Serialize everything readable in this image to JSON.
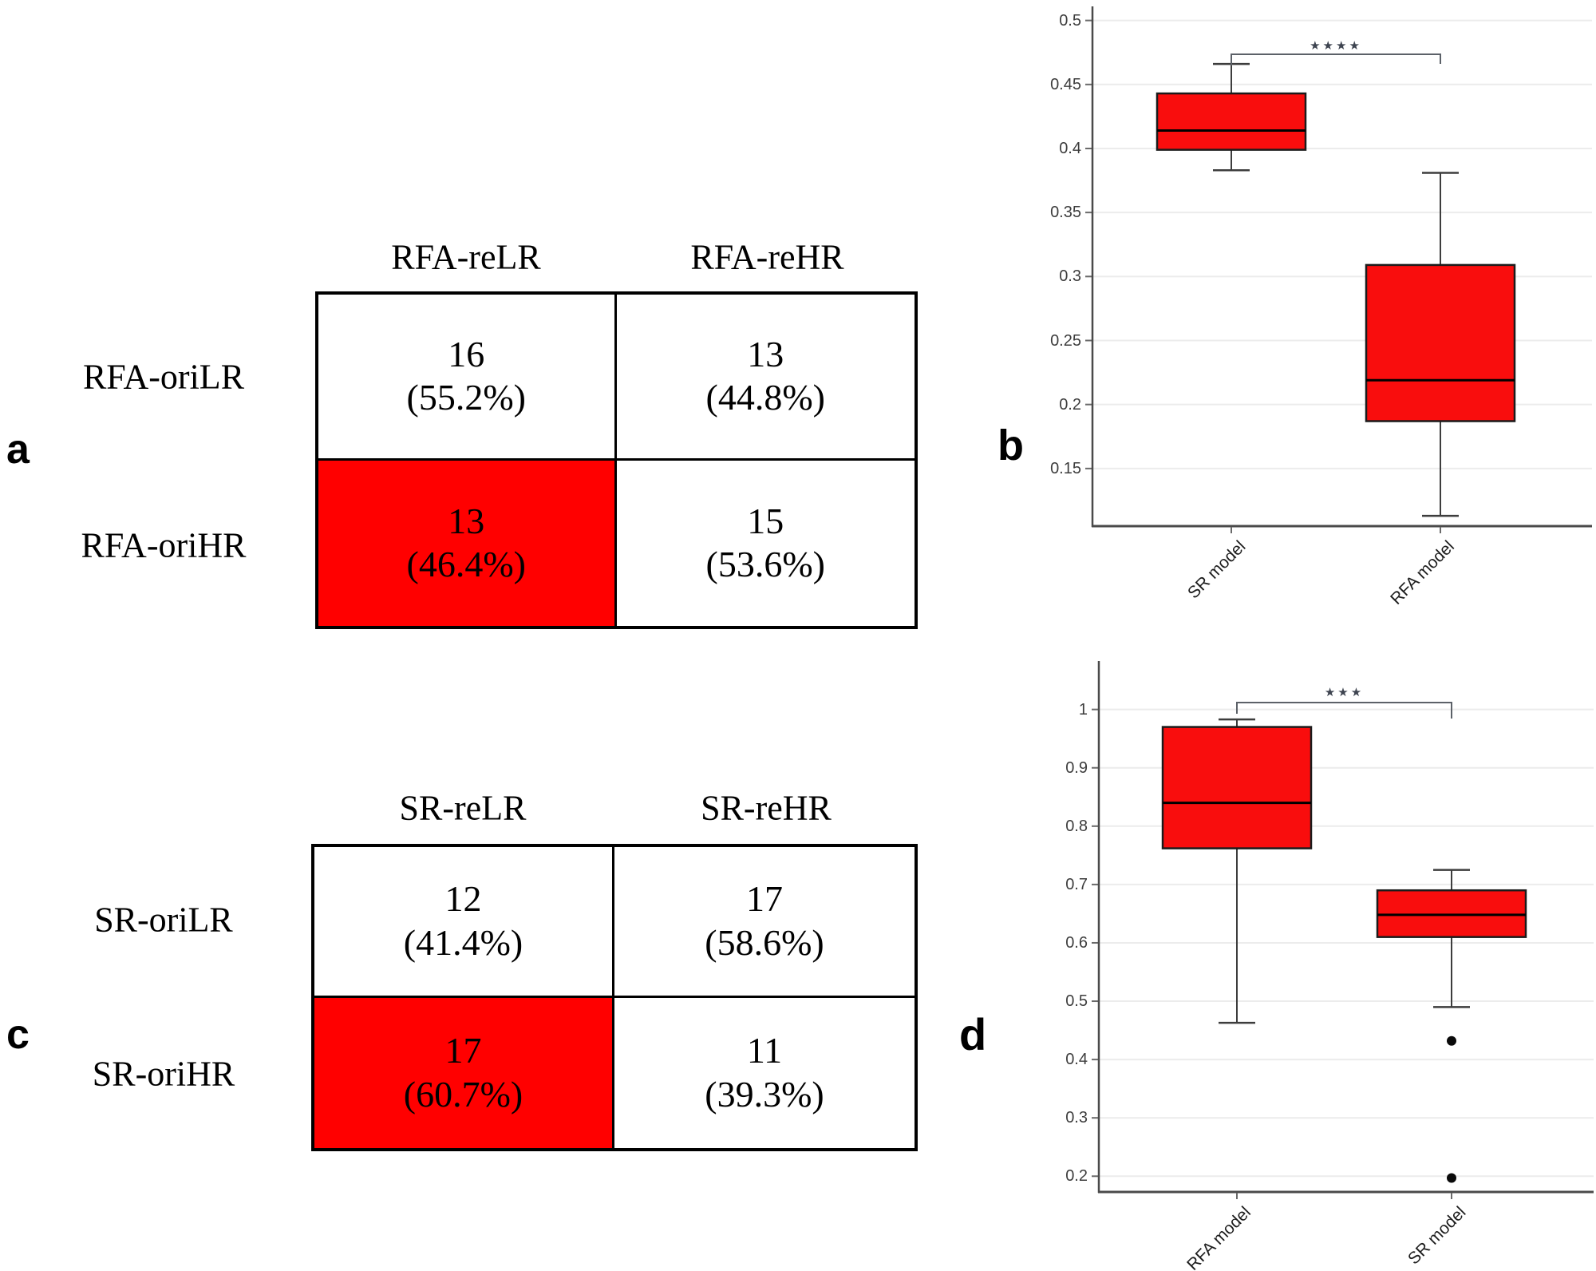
{
  "figure": {
    "background": "#ffffff",
    "panel_letters": {
      "a": "a",
      "b": "b",
      "c": "c",
      "d": "d"
    }
  },
  "colors": {
    "highlight_red": "#ff0000",
    "box_red": "#f90d0d",
    "axis_gray": "#4a4a4a",
    "grid_gray": "#ececec",
    "whisker_gray": "#3d3d3d",
    "bracket_gray": "#5c6168",
    "stars_slate": "#3e4450"
  },
  "chart_data": [
    {
      "type": "table",
      "panel": "a",
      "columns": [
        "RFA-reLR",
        "RFA-reHR"
      ],
      "rows": [
        "RFA-oriLR",
        "RFA-oriHR"
      ],
      "values": [
        [
          "16\n(55.2%)",
          "13\n(44.8%)"
        ],
        [
          "13\n(46.4%)",
          "15\n(53.6%)"
        ]
      ],
      "highlight_cell": [
        1,
        0
      ],
      "highlight_color": "#ff0000"
    },
    {
      "type": "table",
      "panel": "c",
      "columns": [
        "SR-reLR",
        "SR-reHR"
      ],
      "rows": [
        "SR-oriLR",
        "SR-oriHR"
      ],
      "values": [
        [
          "12\n(41.4%)",
          "17\n(58.6%)"
        ],
        [
          "17\n(60.7%)",
          "11\n(39.3%)"
        ]
      ],
      "highlight_cell": [
        1,
        0
      ],
      "highlight_color": "#ff0000"
    },
    {
      "type": "box",
      "panel": "b",
      "categories": [
        "SR model",
        "RFA model"
      ],
      "series": [
        {
          "name": "SR model",
          "whisker_low": 0.383,
          "q1": 0.399,
          "median": 0.414,
          "q3": 0.443,
          "whisker_high": 0.466,
          "outliers": []
        },
        {
          "name": "RFA model",
          "whisker_low": 0.113,
          "q1": 0.187,
          "median": 0.219,
          "q3": 0.309,
          "whisker_high": 0.381,
          "outliers": []
        }
      ],
      "significance": "****",
      "significance_pair": [
        "SR model",
        "RFA model"
      ],
      "ylim": [
        0.105,
        0.511
      ],
      "yticks": [
        0.15,
        0.2,
        0.25,
        0.3,
        0.35,
        0.4,
        0.45,
        0.5
      ],
      "grid": true,
      "legend": "none",
      "box_color": "#f90d0d"
    },
    {
      "type": "box",
      "panel": "d",
      "categories": [
        "RFA model",
        "SR model"
      ],
      "series": [
        {
          "name": "RFA model",
          "whisker_low": 0.463,
          "q1": 0.762,
          "median": 0.84,
          "q3": 0.97,
          "whisker_high": 0.983,
          "outliers": []
        },
        {
          "name": "SR model",
          "whisker_low": 0.49,
          "q1": 0.61,
          "median": 0.648,
          "q3": 0.69,
          "whisker_high": 0.725,
          "outliers": [
            0.432,
            0.197
          ]
        }
      ],
      "significance": "***",
      "significance_pair": [
        "RFA model",
        "SR model"
      ],
      "ylim": [
        0.173,
        1.083
      ],
      "yticks": [
        0.2,
        0.3,
        0.4,
        0.5,
        0.6,
        0.7,
        0.8,
        0.9,
        1.0
      ],
      "grid": true,
      "legend": "none",
      "box_color": "#f90d0d"
    }
  ]
}
